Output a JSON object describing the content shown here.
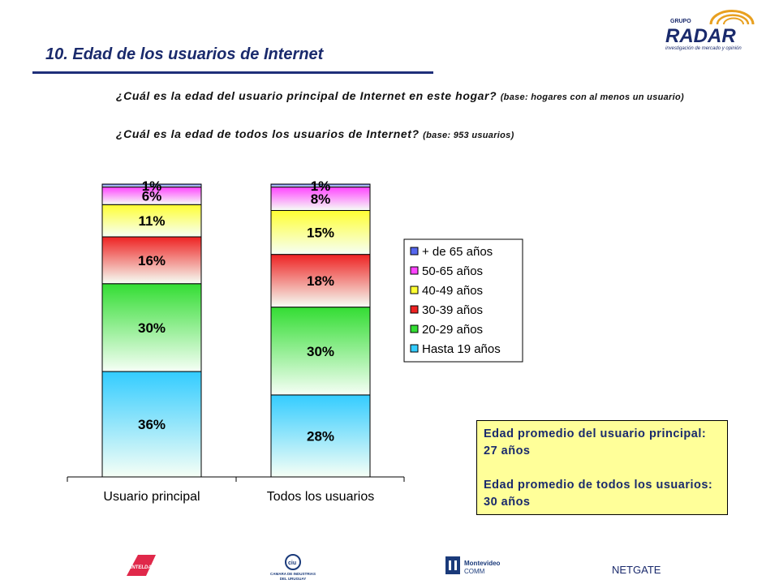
{
  "header": {
    "title": "10. Edad de los usuarios de Internet",
    "logo": {
      "group": "GRUPO",
      "name": "RADAR",
      "tagline": "investigación de mercado y opinión"
    }
  },
  "questions": {
    "q1_text": "¿Cuál es la edad del usuario principal de Internet en este hogar?",
    "q1_base": "(base:    hogares con al menos un usuario)",
    "q2_text": "¿Cuál es la edad de todos los usuarios de Internet?",
    "q2_base": "(base: 953 usuarios)"
  },
  "chart_data": {
    "type": "bar",
    "stacked": true,
    "percent": true,
    "categories": [
      "Usuario principal",
      "Todos los usuarios"
    ],
    "series": [
      {
        "name": "Hasta 19 años",
        "values": [
          36,
          28
        ],
        "color": "#33ccff"
      },
      {
        "name": "20-29 años",
        "values": [
          30,
          30
        ],
        "color": "#33dd33"
      },
      {
        "name": "30-39 años",
        "values": [
          16,
          18
        ],
        "color": "#ee2222"
      },
      {
        "name": "40-49 años",
        "values": [
          11,
          15
        ],
        "color": "#ffff33"
      },
      {
        "name": "50-65 años",
        "values": [
          6,
          8
        ],
        "color": "#ff44ff"
      },
      {
        "name": "+ de 65 años",
        "values": [
          1,
          1
        ],
        "color": "#5566ee"
      }
    ],
    "ylim": [
      0,
      100
    ],
    "legend_position": "right",
    "grid": false,
    "title": "",
    "xlabel": "",
    "ylabel": ""
  },
  "summary": {
    "line1": "Edad promedio del usuario principal: 27 años",
    "line2": "Edad promedio de todos los usuarios: 30 años"
  },
  "footer_logos": {
    "antel": "ANTELDATA",
    "ciu_top": "ciu",
    "ciu_line1": "CAMARA DE INDUSTRIAS",
    "ciu_line2": "DEL URUGUAY",
    "montevideo_line1": "Montevideo",
    "montevideo_line2": "COMM",
    "netgate": "NETGATE"
  }
}
